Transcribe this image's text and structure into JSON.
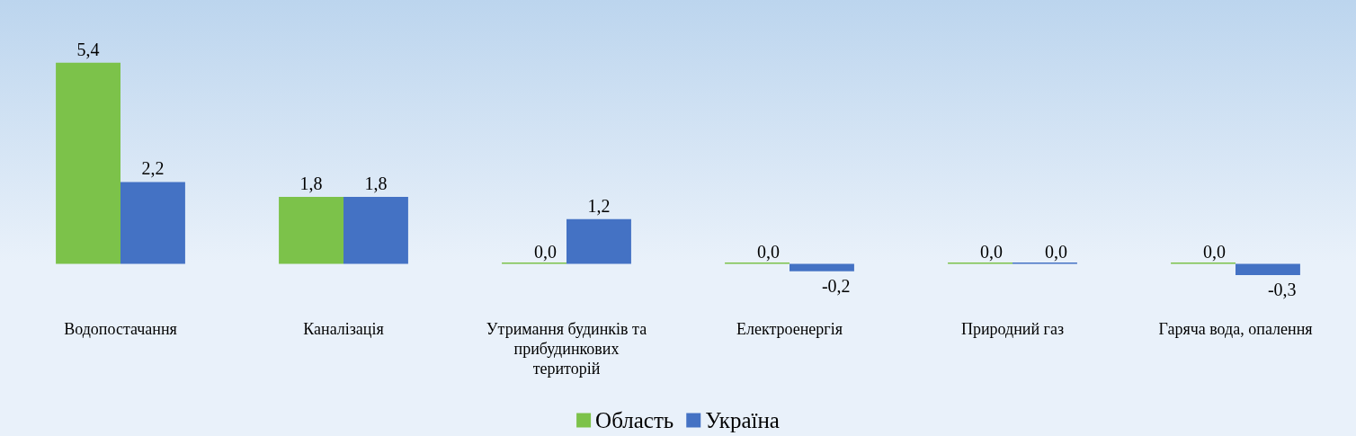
{
  "chart_data": {
    "type": "bar",
    "categories": [
      "Водопостачання",
      "Каналізація",
      "Утримання будинків та прибудинкових територій",
      "Електроенергія",
      "Природний газ",
      "Гаряча вода, опалення"
    ],
    "series": [
      {
        "name": "Область",
        "color": "#7cc24a",
        "values": [
          5.4,
          1.8,
          0.0,
          0.0,
          0.0,
          0.0
        ],
        "value_labels": [
          "5,4",
          "1,8",
          "0,0",
          "0,0",
          "0,0",
          "0,0"
        ]
      },
      {
        "name": "Україна",
        "color": "#4472c4",
        "values": [
          2.2,
          1.8,
          1.2,
          -0.2,
          0.0,
          -0.3
        ],
        "value_labels": [
          "2,2",
          "1,8",
          "1,2",
          "-0,2",
          "0,0",
          "-0,3"
        ]
      }
    ],
    "legend": "bottom",
    "grid": false
  }
}
